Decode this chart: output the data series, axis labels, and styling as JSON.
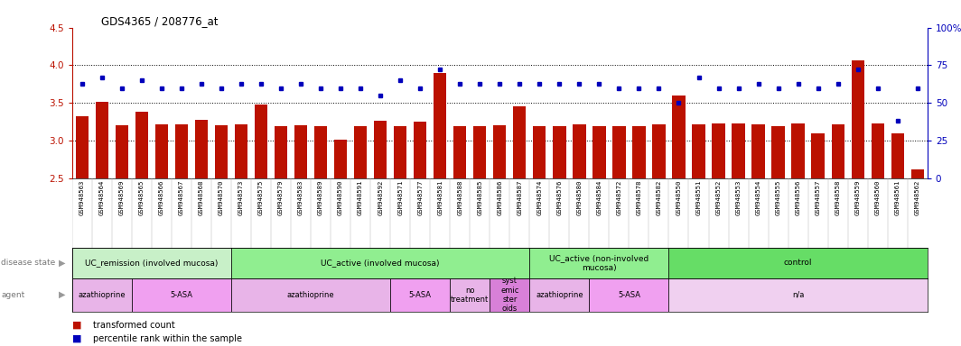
{
  "title": "GDS4365 / 208776_at",
  "samples": [
    "GSM948563",
    "GSM948564",
    "GSM948569",
    "GSM948565",
    "GSM948566",
    "GSM948567",
    "GSM948568",
    "GSM948570",
    "GSM948573",
    "GSM948575",
    "GSM948579",
    "GSM948583",
    "GSM948589",
    "GSM948590",
    "GSM948591",
    "GSM948592",
    "GSM948571",
    "GSM948577",
    "GSM948581",
    "GSM948588",
    "GSM948585",
    "GSM948586",
    "GSM948587",
    "GSM948574",
    "GSM948576",
    "GSM948580",
    "GSM948584",
    "GSM948572",
    "GSM948578",
    "GSM948582",
    "GSM948550",
    "GSM948551",
    "GSM948552",
    "GSM948553",
    "GSM948554",
    "GSM948555",
    "GSM948556",
    "GSM948557",
    "GSM948558",
    "GSM948559",
    "GSM948560",
    "GSM948561",
    "GSM948562"
  ],
  "bar_values": [
    3.32,
    3.51,
    3.2,
    3.38,
    3.21,
    3.22,
    3.27,
    3.2,
    3.22,
    3.48,
    3.19,
    3.2,
    3.19,
    3.01,
    3.19,
    3.26,
    3.19,
    3.25,
    3.9,
    3.19,
    3.19,
    3.2,
    3.46,
    3.19,
    3.19,
    3.22,
    3.19,
    3.19,
    3.19,
    3.22,
    3.6,
    3.22,
    3.23,
    3.23,
    3.22,
    3.19,
    3.23,
    3.1,
    3.22,
    4.07,
    3.23,
    3.1,
    2.62
  ],
  "dot_values_pct": [
    63,
    67,
    60,
    65,
    60,
    60,
    63,
    60,
    63,
    63,
    60,
    63,
    60,
    60,
    60,
    55,
    65,
    60,
    72,
    63,
    63,
    63,
    63,
    63,
    63,
    63,
    63,
    60,
    60,
    60,
    50,
    67,
    60,
    60,
    63,
    60,
    63,
    60,
    63,
    72,
    60,
    38,
    60
  ],
  "disease_state_groups": [
    {
      "label": "UC_remission (involved mucosa)",
      "start": 0,
      "end": 8,
      "color": "#c8f0c8"
    },
    {
      "label": "UC_active (involved mucosa)",
      "start": 8,
      "end": 23,
      "color": "#90ee90"
    },
    {
      "label": "UC_active (non-involved\nmucosa)",
      "start": 23,
      "end": 30,
      "color": "#90ee90"
    },
    {
      "label": "control",
      "start": 30,
      "end": 43,
      "color": "#66dd66"
    }
  ],
  "agent_groups": [
    {
      "label": "azathioprine",
      "start": 0,
      "end": 3,
      "color": "#e8b4e8"
    },
    {
      "label": "5-ASA",
      "start": 3,
      "end": 8,
      "color": "#f0a0f0"
    },
    {
      "label": "azathioprine",
      "start": 8,
      "end": 16,
      "color": "#e8b4e8"
    },
    {
      "label": "5-ASA",
      "start": 16,
      "end": 19,
      "color": "#f0a0f0"
    },
    {
      "label": "no\ntreatment",
      "start": 19,
      "end": 21,
      "color": "#e8b4e8"
    },
    {
      "label": "syst\nemic\nster\noids",
      "start": 21,
      "end": 23,
      "color": "#d880d8"
    },
    {
      "label": "azathioprine",
      "start": 23,
      "end": 26,
      "color": "#e8b4e8"
    },
    {
      "label": "5-ASA",
      "start": 26,
      "end": 30,
      "color": "#f0a0f0"
    },
    {
      "label": "n/a",
      "start": 30,
      "end": 43,
      "color": "#f0d0f0"
    }
  ],
  "bar_color": "#bb1100",
  "dot_color": "#0000bb",
  "ylim_left": [
    2.5,
    4.5
  ],
  "ylim_right": [
    0,
    100
  ],
  "yticks_left": [
    2.5,
    3.0,
    3.5,
    4.0,
    4.5
  ],
  "yticks_right": [
    0,
    25,
    50,
    75,
    100
  ],
  "ytick_labels_right": [
    "0",
    "25",
    "50",
    "75",
    "100%"
  ],
  "grid_lines": [
    3.0,
    3.5,
    4.0
  ],
  "bar_width": 0.65
}
